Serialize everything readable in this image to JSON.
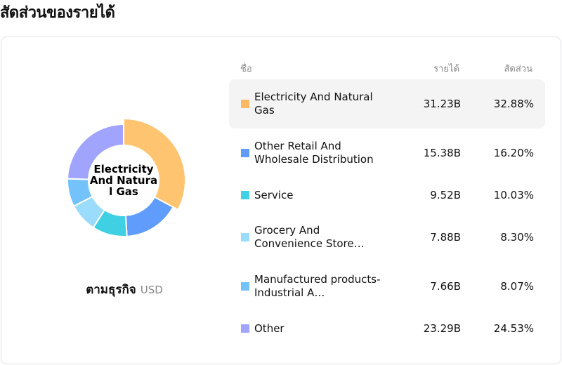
{
  "title": "สัดส่วนของรายได้",
  "center_label": "Electricity And Natural Gas",
  "segment_by": "ตามธุรกิจ",
  "currency": "USD",
  "headers": {
    "name": "ชื่อ",
    "revenue": "รายได้",
    "share": "สัดส่วน"
  },
  "selected_index": 0,
  "chart_data": {
    "type": "pie",
    "donut": true,
    "categories": [
      "Electricity And Natural Gas",
      "Other Retail And Wholesale Distribution",
      "Service",
      "Grocery And Convenience Store…",
      "Manufactured products-Industrial A…",
      "Other"
    ],
    "values": [
      32.88,
      16.2,
      10.03,
      8.3,
      8.07,
      24.53
    ]
  },
  "rows": [
    {
      "name": "Electricity And Natural Gas",
      "revenue": "31.23B",
      "share": "32.88%",
      "color": "#fdb863"
    },
    {
      "name": "Other Retail And Wholesale Distribution",
      "revenue": "15.38B",
      "share": "16.20%",
      "color": "#5f9cfc"
    },
    {
      "name": "Service",
      "revenue": "9.52B",
      "share": "10.03%",
      "color": "#40d0e4"
    },
    {
      "name": "Grocery And Convenience Store…",
      "revenue": "7.88B",
      "share": "8.30%",
      "color": "#9bdcfc"
    },
    {
      "name": "Manufactured products-Industrial A…",
      "revenue": "7.66B",
      "share": "8.07%",
      "color": "#73c3fa"
    },
    {
      "name": "Other",
      "revenue": "23.29B",
      "share": "24.53%",
      "color": "#a0a4fc"
    }
  ],
  "slice_colors": [
    "#ffc46f",
    "#5f9cfc",
    "#40d0e4",
    "#9bdcfc",
    "#73c3fa",
    "#a0a4fc"
  ]
}
